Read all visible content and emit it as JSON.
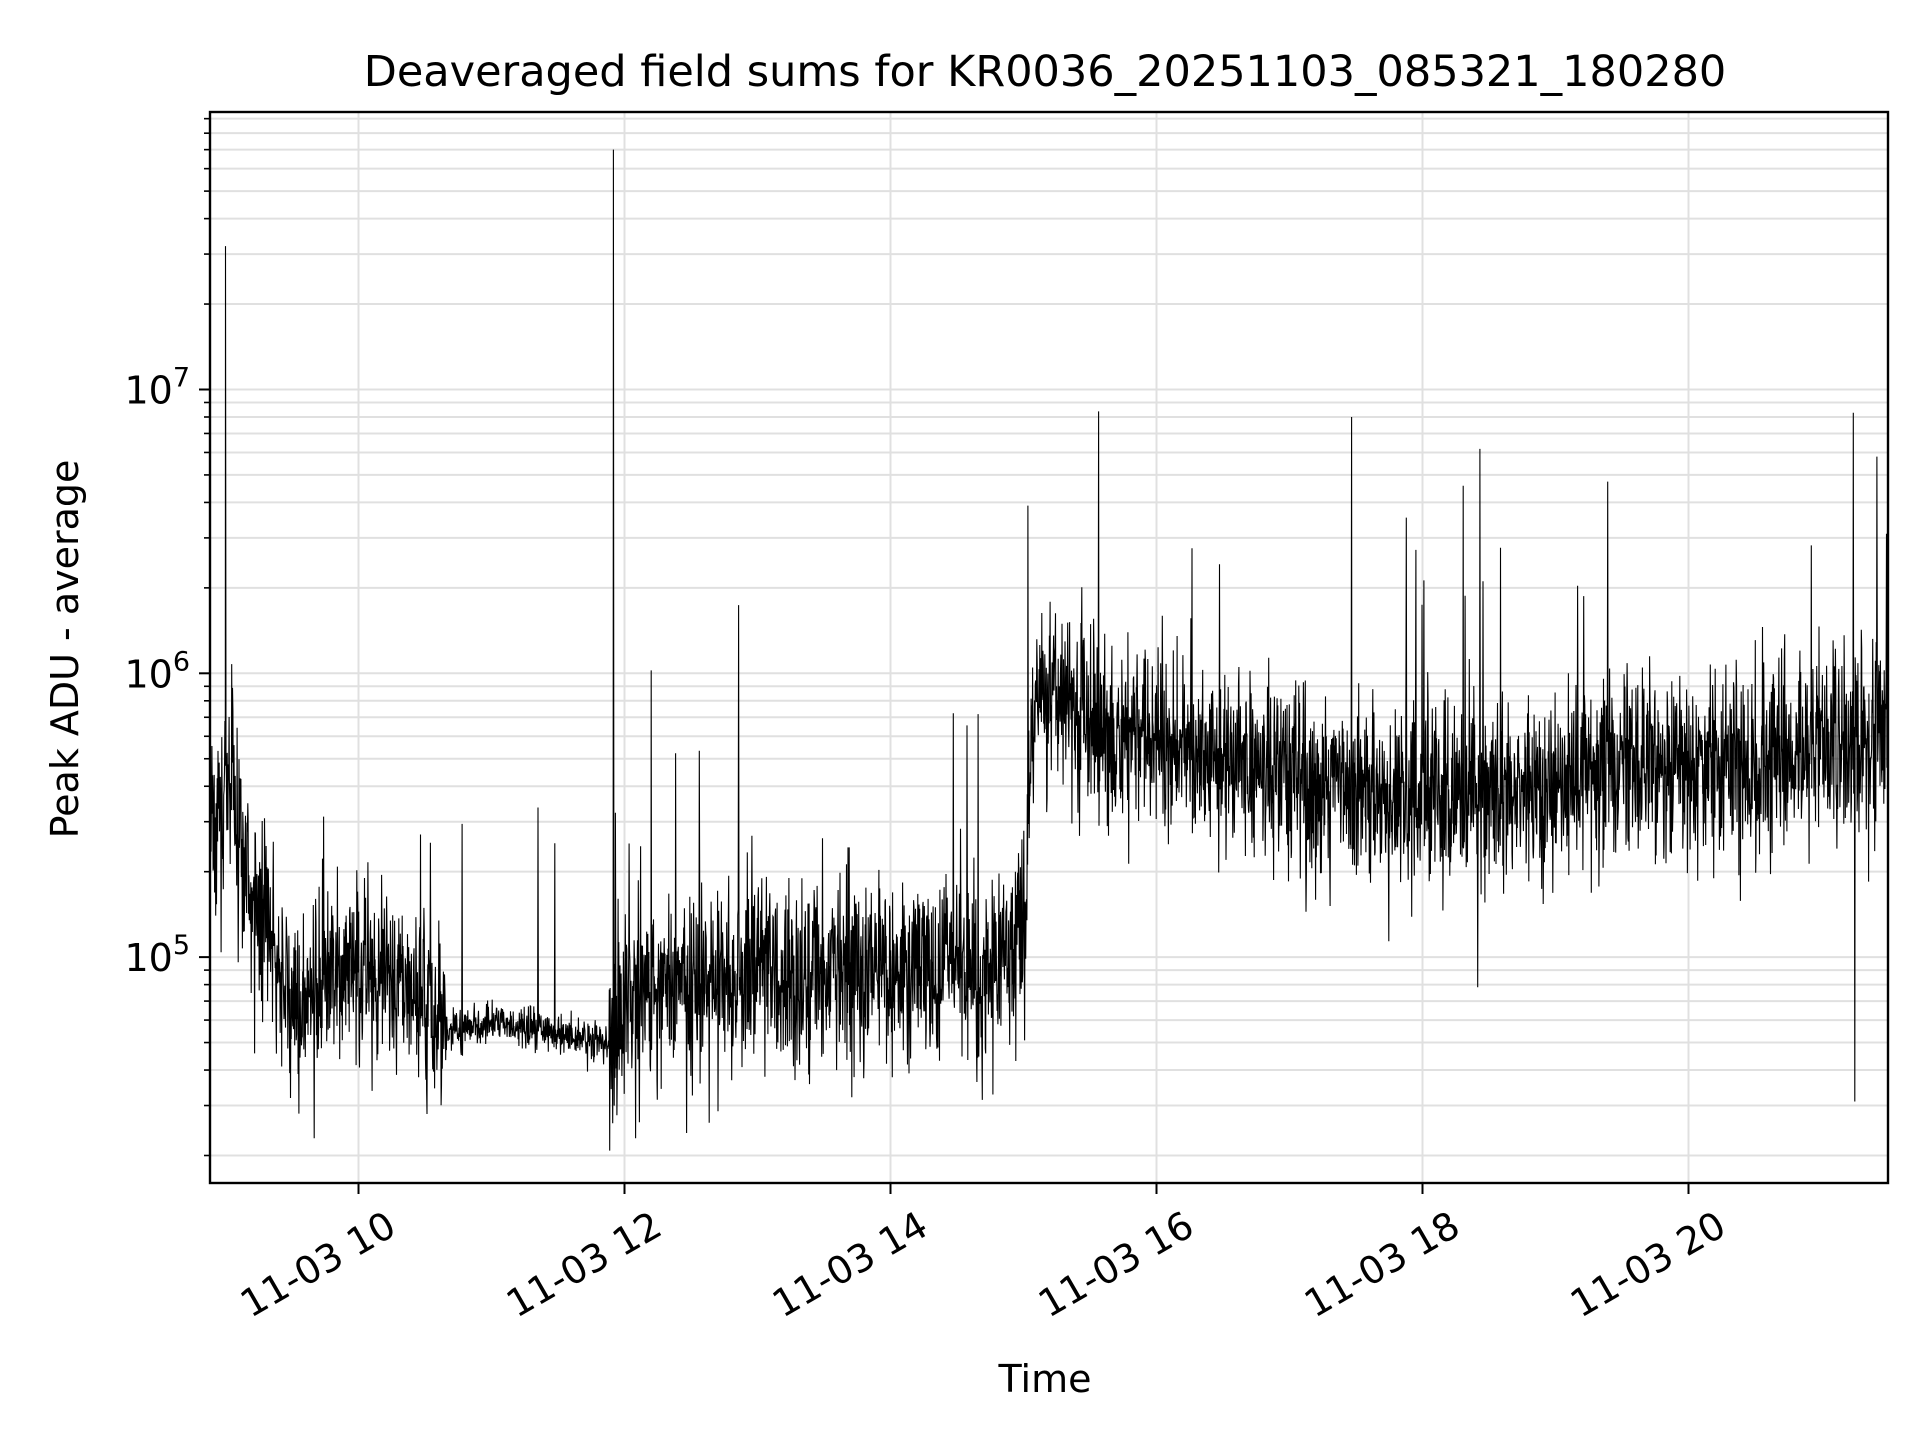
{
  "chart_data": {
    "type": "line",
    "title": "Deaveraged field sums for KR0036_20251103_085321_180280",
    "xlabel": "Time",
    "ylabel": "Peak ADU - average",
    "y_scale": "log",
    "grid": "major-and-minor",
    "legend": "none",
    "line_color": "#000000",
    "grid_color": "#e0e0e0",
    "xlim": [
      "2025-11-03 08:53",
      "2025-11-03 21:30"
    ],
    "ylim": [
      16000,
      95000000
    ],
    "x_ticks": [
      {
        "value": "2025-11-03 10:00",
        "label": "11-03 10"
      },
      {
        "value": "2025-11-03 12:00",
        "label": "11-03 12"
      },
      {
        "value": "2025-11-03 14:00",
        "label": "11-03 14"
      },
      {
        "value": "2025-11-03 16:00",
        "label": "11-03 16"
      },
      {
        "value": "2025-11-03 18:00",
        "label": "11-03 18"
      },
      {
        "value": "2025-11-03 20:00",
        "label": "11-03 20"
      }
    ],
    "y_ticks": [
      {
        "value": 100000,
        "base": "10",
        "exp": "5"
      },
      {
        "value": 1000000,
        "base": "10",
        "exp": "6"
      },
      {
        "value": 10000000,
        "base": "10",
        "exp": "7"
      }
    ],
    "series": [
      {
        "x": [
          "2025-11-03 08:53",
          "2025-11-03 09:00",
          "2025-11-03 09:10",
          "2025-11-03 09:20",
          "2025-11-03 09:30",
          "2025-11-03 09:45",
          "2025-11-03 10:00",
          "2025-11-03 10:20",
          "2025-11-03 10:40",
          "2025-11-03 11:00",
          "2025-11-03 11:20",
          "2025-11-03 11:40",
          "2025-11-03 11:53",
          "2025-11-03 12:10",
          "2025-11-03 12:30",
          "2025-11-03 13:00",
          "2025-11-03 13:30",
          "2025-11-03 14:00",
          "2025-11-03 14:30",
          "2025-11-03 15:00",
          "2025-11-03 15:05",
          "2025-11-03 15:30",
          "2025-11-03 16:00",
          "2025-11-03 16:30",
          "2025-11-03 17:00",
          "2025-11-03 17:30",
          "2025-11-03 18:00",
          "2025-11-03 18:30",
          "2025-11-03 19:00",
          "2025-11-03 19:30",
          "2025-11-03 20:00",
          "2025-11-03 20:30",
          "2025-11-03 21:00",
          "2025-11-03 21:30"
        ],
        "values": [
          250000,
          400000,
          200000,
          120000,
          65000,
          80000,
          95000,
          90000,
          55000,
          58000,
          55000,
          52000,
          50000,
          85000,
          80000,
          90000,
          85000,
          95000,
          90000,
          110000,
          900000,
          700000,
          550000,
          500000,
          450000,
          380000,
          350000,
          380000,
          420000,
          450000,
          450000,
          500000,
          550000,
          600000
        ],
        "peaks": [
          {
            "x": "2025-11-03 09:00",
            "value": 32000000
          },
          {
            "x": "2025-11-03 11:55",
            "value": 70000000
          },
          {
            "x": "2025-11-03 15:02",
            "value": 3900000
          },
          {
            "x": "2025-11-03 17:28",
            "value": 8000000
          },
          {
            "x": "2025-11-03 21:25",
            "value": 5800000
          }
        ],
        "dips": [
          {
            "x": "2025-11-03 09:40",
            "value": 23000
          },
          {
            "x": "2025-11-03 12:28",
            "value": 24000
          },
          {
            "x": "2025-11-03 21:15",
            "value": 31000
          }
        ]
      }
    ]
  }
}
